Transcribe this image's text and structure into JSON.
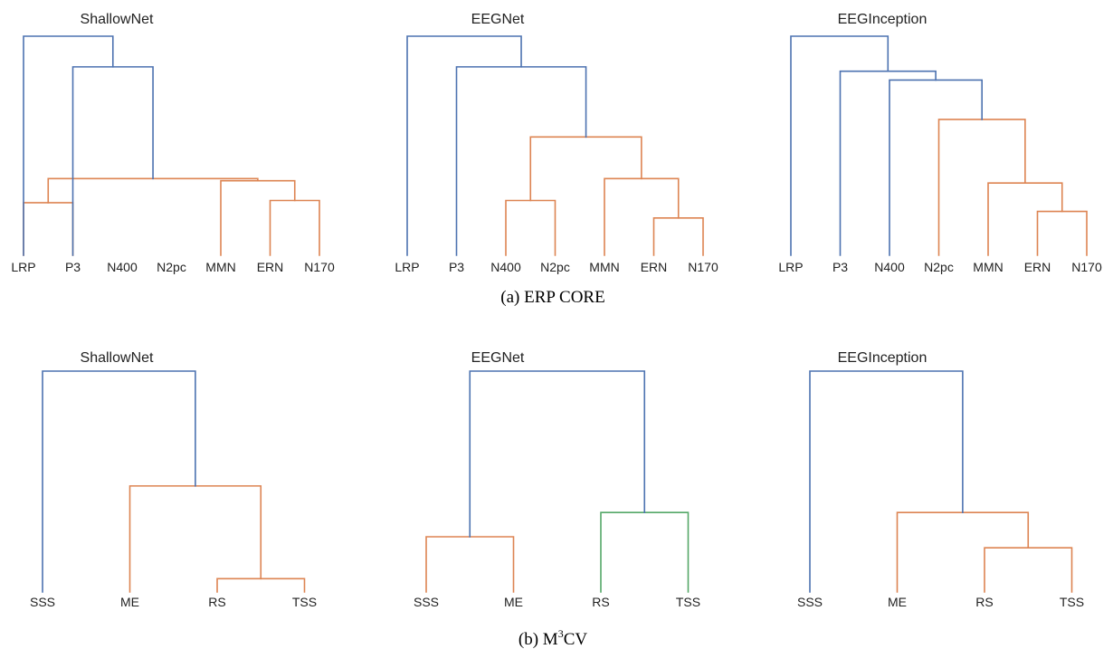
{
  "colors": {
    "blue": "#4c72b0",
    "orange": "#dd8452",
    "green": "#55a868"
  },
  "figure": {
    "captions": [
      {
        "id": "a",
        "text": "(a) ERP CORE"
      },
      {
        "id": "b",
        "prefix": "(b) M",
        "sup": "3",
        "suffix": "CV"
      }
    ]
  },
  "dendrograms": [
    {
      "row": 0,
      "col": 0,
      "title": "ShallowNet",
      "leaves": [
        "LRP",
        "P3",
        "N400",
        "N2pc",
        "MMN",
        "ERN",
        "N170"
      ],
      "links": [
        {
          "left": 0,
          "right": 1,
          "height": 0.24,
          "color": "orange"
        },
        {
          "left": 5,
          "right": 6,
          "height": 0.25,
          "color": "orange"
        },
        {
          "left": 4,
          "right": 8,
          "height": 0.34,
          "color": "orange"
        },
        {
          "left": 7,
          "right": 9,
          "height": 0.35,
          "color": "orange"
        },
        {
          "left": 1,
          "right": 10,
          "height": 0.86,
          "color": "blue"
        },
        {
          "left": 0,
          "right": 11,
          "height": 1.0,
          "color": "blue"
        }
      ]
    },
    {
      "row": 0,
      "col": 1,
      "title": "EEGNet",
      "leaves": [
        "LRP",
        "P3",
        "N400",
        "N2pc",
        "MMN",
        "ERN",
        "N170"
      ],
      "links": [
        {
          "left": 5,
          "right": 6,
          "height": 0.17,
          "color": "orange"
        },
        {
          "left": 2,
          "right": 3,
          "height": 0.25,
          "color": "orange"
        },
        {
          "left": 4,
          "right": 7,
          "height": 0.35,
          "color": "orange"
        },
        {
          "left": 8,
          "right": 9,
          "height": 0.54,
          "color": "orange"
        },
        {
          "left": 1,
          "right": 10,
          "height": 0.86,
          "color": "blue"
        },
        {
          "left": 0,
          "right": 11,
          "height": 1.0,
          "color": "blue"
        }
      ]
    },
    {
      "row": 0,
      "col": 2,
      "title": "EEGInception",
      "leaves": [
        "LRP",
        "P3",
        "N400",
        "N2pc",
        "MMN",
        "ERN",
        "N170"
      ],
      "links": [
        {
          "left": 5,
          "right": 6,
          "height": 0.2,
          "color": "orange"
        },
        {
          "left": 4,
          "right": 7,
          "height": 0.33,
          "color": "orange"
        },
        {
          "left": 3,
          "right": 8,
          "height": 0.62,
          "color": "orange"
        },
        {
          "left": 2,
          "right": 9,
          "height": 0.8,
          "color": "blue"
        },
        {
          "left": 1,
          "right": 10,
          "height": 0.84,
          "color": "blue"
        },
        {
          "left": 0,
          "right": 11,
          "height": 1.0,
          "color": "blue"
        }
      ]
    },
    {
      "row": 1,
      "col": 0,
      "title": "ShallowNet",
      "leaves": [
        "SSS",
        "ME",
        "RS",
        "TSS"
      ],
      "links": [
        {
          "left": 2,
          "right": 3,
          "height": 0.06,
          "color": "orange"
        },
        {
          "left": 1,
          "right": 4,
          "height": 0.48,
          "color": "orange"
        },
        {
          "left": 0,
          "right": 5,
          "height": 1.0,
          "color": "blue"
        }
      ]
    },
    {
      "row": 1,
      "col": 1,
      "title": "EEGNet",
      "leaves": [
        "SSS",
        "ME",
        "RS",
        "TSS"
      ],
      "links": [
        {
          "left": 0,
          "right": 1,
          "height": 0.25,
          "color": "orange"
        },
        {
          "left": 2,
          "right": 3,
          "height": 0.36,
          "color": "green"
        },
        {
          "left": 4,
          "right": 5,
          "height": 1.0,
          "color": "blue"
        }
      ]
    },
    {
      "row": 1,
      "col": 2,
      "title": "EEGInception",
      "leaves": [
        "SSS",
        "ME",
        "RS",
        "TSS"
      ],
      "links": [
        {
          "left": 2,
          "right": 3,
          "height": 0.2,
          "color": "orange"
        },
        {
          "left": 1,
          "right": 4,
          "height": 0.36,
          "color": "orange"
        },
        {
          "left": 0,
          "right": 5,
          "height": 1.0,
          "color": "blue"
        }
      ]
    }
  ]
}
